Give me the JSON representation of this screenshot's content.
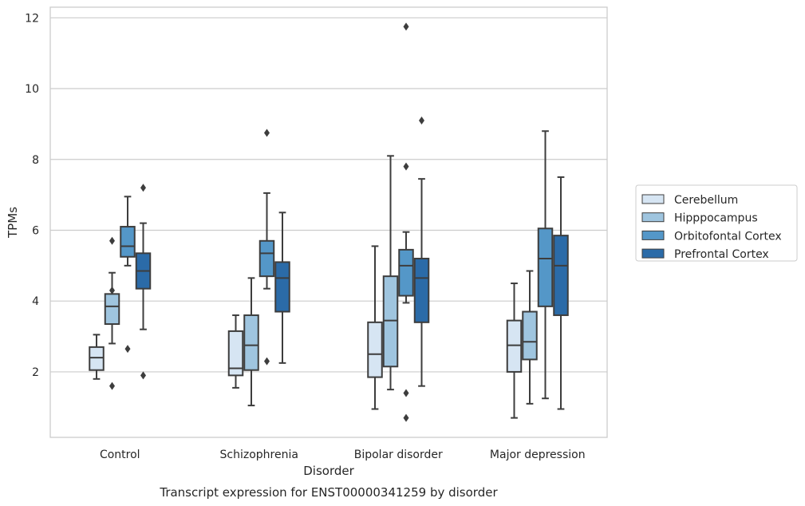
{
  "chart_data": {
    "type": "box",
    "xlabel": "Disorder",
    "ylabel": "TPMs",
    "caption": "Transcript expression for ENST00000341259 by disorder",
    "categories": [
      "Control",
      "Schizophrenia",
      "Bipolar disorder",
      "Major depression"
    ],
    "ylim": [
      0.15,
      12.3
    ],
    "yticks": [
      2,
      4,
      6,
      8,
      10,
      12
    ],
    "grid": "horizontal",
    "legend_position": "right",
    "series": [
      {
        "name": "Cerebellum",
        "color": "#d6e5f3",
        "boxes": [
          {
            "whisker_low": 1.8,
            "q1": 2.05,
            "median": 2.4,
            "q3": 2.7,
            "whisker_high": 3.05,
            "outliers": []
          },
          {
            "whisker_low": 1.55,
            "q1": 1.9,
            "median": 2.1,
            "q3": 3.15,
            "whisker_high": 3.6,
            "outliers": []
          },
          {
            "whisker_low": 0.95,
            "q1": 1.85,
            "median": 2.5,
            "q3": 3.4,
            "whisker_high": 5.55,
            "outliers": []
          },
          {
            "whisker_low": 0.7,
            "q1": 2.0,
            "median": 2.75,
            "q3": 3.45,
            "whisker_high": 4.5,
            "outliers": []
          }
        ]
      },
      {
        "name": "Hipppocampus",
        "color": "#9fc5df",
        "boxes": [
          {
            "whisker_low": 2.8,
            "q1": 3.35,
            "median": 3.85,
            "q3": 4.2,
            "whisker_high": 4.8,
            "outliers": [
              4.3,
              5.7,
              1.6
            ]
          },
          {
            "whisker_low": 1.05,
            "q1": 2.05,
            "median": 2.75,
            "q3": 3.6,
            "whisker_high": 4.65,
            "outliers": []
          },
          {
            "whisker_low": 1.5,
            "q1": 2.15,
            "median": 3.45,
            "q3": 4.7,
            "whisker_high": 8.1,
            "outliers": []
          },
          {
            "whisker_low": 1.1,
            "q1": 2.35,
            "median": 2.85,
            "q3": 3.7,
            "whisker_high": 4.85,
            "outliers": []
          }
        ]
      },
      {
        "name": "Orbitofontal Cortex",
        "color": "#5497c8",
        "boxes": [
          {
            "whisker_low": 5.0,
            "q1": 5.25,
            "median": 5.55,
            "q3": 6.1,
            "whisker_high": 6.95,
            "outliers": [
              2.65
            ]
          },
          {
            "whisker_low": 4.35,
            "q1": 4.7,
            "median": 5.35,
            "q3": 5.7,
            "whisker_high": 7.05,
            "outliers": [
              8.75,
              2.3
            ]
          },
          {
            "whisker_low": 3.95,
            "q1": 4.15,
            "median": 5.0,
            "q3": 5.45,
            "whisker_high": 5.95,
            "outliers": [
              11.75,
              7.8,
              1.4,
              0.7
            ]
          },
          {
            "whisker_low": 1.25,
            "q1": 3.85,
            "median": 5.2,
            "q3": 6.05,
            "whisker_high": 8.8,
            "outliers": []
          }
        ]
      },
      {
        "name": "Prefrontal Cortex",
        "color": "#2b6ba8",
        "boxes": [
          {
            "whisker_low": 3.2,
            "q1": 4.35,
            "median": 4.85,
            "q3": 5.35,
            "whisker_high": 6.2,
            "outliers": [
              7.2,
              1.9
            ]
          },
          {
            "whisker_low": 2.25,
            "q1": 3.7,
            "median": 4.65,
            "q3": 5.1,
            "whisker_high": 6.5,
            "outliers": []
          },
          {
            "whisker_low": 1.6,
            "q1": 3.4,
            "median": 4.65,
            "q3": 5.2,
            "whisker_high": 7.45,
            "outliers": [
              9.1
            ]
          },
          {
            "whisker_low": 0.95,
            "q1": 3.6,
            "median": 5.0,
            "q3": 5.85,
            "whisker_high": 7.5,
            "outliers": []
          }
        ]
      }
    ]
  }
}
